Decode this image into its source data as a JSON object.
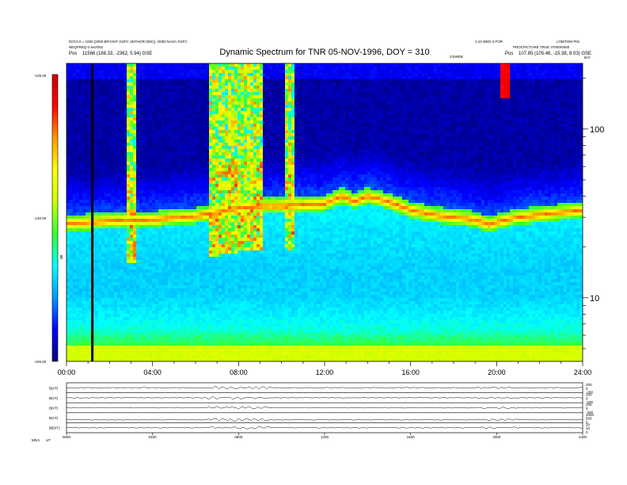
{
  "header": {
    "left_line1": "DOI:0.0 = 1000 [2006 BRYANT GSFC (INTHOR:SEE)]. 4/000 NASA GSFC",
    "left_line2": "NEQFREQ 0 sec/002",
    "left_line3_label": "Pos",
    "left_line3_value": "11566 (188.33, -2362, 5.94) GSE",
    "right_line1": "1.10 WED 3 FOR",
    "right_line1b": "LOBITOM PIN",
    "right_line2": "PROCPICTURE TRUE 37000/0000",
    "right_line3_label": "Pos",
    "right_line3_value": "107.85 (105.46, -15.38, 8.03) GSE",
    "right_mid_label": "GSWEB"
  },
  "chart_data": {
    "type": "heatmap",
    "title": "Dynamic Spectrum for TNR 05-NOV-1996, DOY = 310",
    "x_label": "",
    "x_ticks": [
      "00:00",
      "04:00",
      "08:00",
      "12:00",
      "16:00",
      "20:00",
      "24:00"
    ],
    "x_range_hours": [
      0,
      24
    ],
    "y_scale": "log",
    "y_unit": "kHz",
    "y_ticks": [
      "100",
      "10"
    ],
    "y_range_khz": [
      4.2,
      245
    ],
    "colorbar": {
      "label": "dB",
      "ticks": [
        "-125.00",
        "-140.00",
        "-155.00"
      ],
      "range": [
        -155,
        -125
      ],
      "colors": [
        "#00007f",
        "#0000ff",
        "#0099ff",
        "#00ffff",
        "#33ff33",
        "#c8ff00",
        "#ffff00",
        "#ff9900",
        "#ff0000",
        "#cc0000"
      ]
    },
    "marker_hour": 1.2,
    "background_khz": [
      4.8,
      5.5,
      6.5,
      8.0,
      10.5,
      15.0,
      22.0,
      30.0
    ],
    "background_db": [
      -140,
      -142.5,
      -144.5,
      -145.5,
      -146.5,
      -146.5,
      -146,
      -145.5
    ],
    "plasma_line": {
      "hours": [
        0,
        2,
        4,
        6,
        7,
        8,
        9,
        10,
        11,
        12,
        12.8,
        13.4,
        14,
        15,
        16,
        17,
        18,
        19,
        19.7,
        20,
        21,
        22,
        23,
        24
      ],
      "khz": [
        27.5,
        28.5,
        29,
        30.5,
        32,
        34,
        35,
        35,
        35.5,
        36,
        40,
        37,
        40,
        37,
        33,
        31,
        30,
        29,
        27,
        28,
        30,
        31,
        32,
        33
      ]
    },
    "panels": {
      "labels": [
        "B(nT)",
        "B(nT)",
        "B(nT)",
        "B(nT)",
        "|B|(nT)"
      ],
      "right_ticks": [
        [
          "200",
          "0",
          "-200"
        ],
        [
          "200",
          "0",
          "-200"
        ],
        [
          "200",
          "0",
          "-200"
        ],
        [
          "1000",
          "500",
          "0"
        ],
        [
          "20",
          "10",
          "0"
        ]
      ],
      "x_ticks": [
        "0000",
        "0400",
        "0800",
        "1200",
        "1600",
        "2000",
        "2400"
      ],
      "bottom_left": [
        "Mhrs",
        "UT"
      ]
    }
  }
}
